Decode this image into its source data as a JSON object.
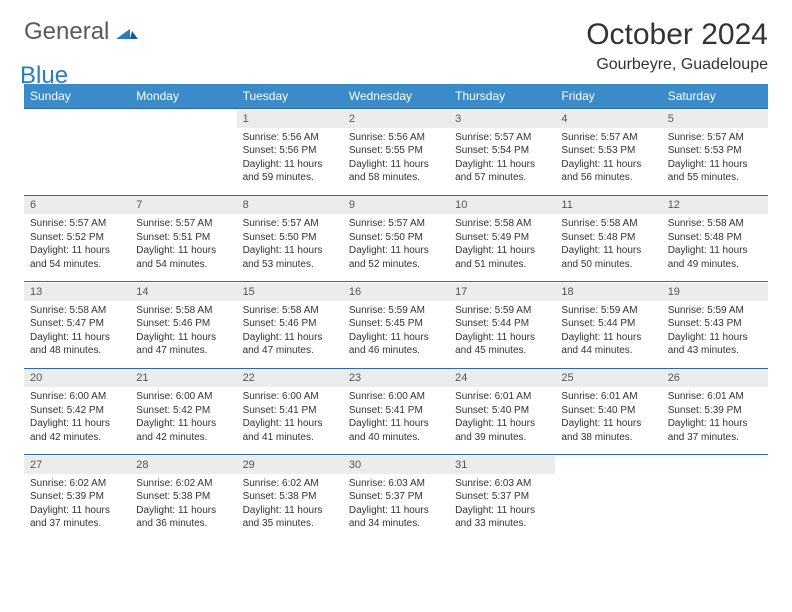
{
  "brand": {
    "word1": "General",
    "word2": "Blue"
  },
  "title": {
    "month": "October 2024",
    "location": "Gourbeyre, Guadeloupe"
  },
  "colors": {
    "header_bg": "#3b8bc9",
    "header_text": "#ffffff",
    "daynum_bg": "#ececec",
    "week_border": "#2d6aa3",
    "logo_gray": "#5a5a5a",
    "logo_blue": "#2b7bbf"
  },
  "day_names": [
    "Sunday",
    "Monday",
    "Tuesday",
    "Wednesday",
    "Thursday",
    "Friday",
    "Saturday"
  ],
  "weeks": [
    [
      null,
      null,
      {
        "n": "1",
        "sr": "5:56 AM",
        "ss": "5:56 PM",
        "dl": "11 hours and 59 minutes."
      },
      {
        "n": "2",
        "sr": "5:56 AM",
        "ss": "5:55 PM",
        "dl": "11 hours and 58 minutes."
      },
      {
        "n": "3",
        "sr": "5:57 AM",
        "ss": "5:54 PM",
        "dl": "11 hours and 57 minutes."
      },
      {
        "n": "4",
        "sr": "5:57 AM",
        "ss": "5:53 PM",
        "dl": "11 hours and 56 minutes."
      },
      {
        "n": "5",
        "sr": "5:57 AM",
        "ss": "5:53 PM",
        "dl": "11 hours and 55 minutes."
      }
    ],
    [
      {
        "n": "6",
        "sr": "5:57 AM",
        "ss": "5:52 PM",
        "dl": "11 hours and 54 minutes."
      },
      {
        "n": "7",
        "sr": "5:57 AM",
        "ss": "5:51 PM",
        "dl": "11 hours and 54 minutes."
      },
      {
        "n": "8",
        "sr": "5:57 AM",
        "ss": "5:50 PM",
        "dl": "11 hours and 53 minutes."
      },
      {
        "n": "9",
        "sr": "5:57 AM",
        "ss": "5:50 PM",
        "dl": "11 hours and 52 minutes."
      },
      {
        "n": "10",
        "sr": "5:58 AM",
        "ss": "5:49 PM",
        "dl": "11 hours and 51 minutes."
      },
      {
        "n": "11",
        "sr": "5:58 AM",
        "ss": "5:48 PM",
        "dl": "11 hours and 50 minutes."
      },
      {
        "n": "12",
        "sr": "5:58 AM",
        "ss": "5:48 PM",
        "dl": "11 hours and 49 minutes."
      }
    ],
    [
      {
        "n": "13",
        "sr": "5:58 AM",
        "ss": "5:47 PM",
        "dl": "11 hours and 48 minutes."
      },
      {
        "n": "14",
        "sr": "5:58 AM",
        "ss": "5:46 PM",
        "dl": "11 hours and 47 minutes."
      },
      {
        "n": "15",
        "sr": "5:58 AM",
        "ss": "5:46 PM",
        "dl": "11 hours and 47 minutes."
      },
      {
        "n": "16",
        "sr": "5:59 AM",
        "ss": "5:45 PM",
        "dl": "11 hours and 46 minutes."
      },
      {
        "n": "17",
        "sr": "5:59 AM",
        "ss": "5:44 PM",
        "dl": "11 hours and 45 minutes."
      },
      {
        "n": "18",
        "sr": "5:59 AM",
        "ss": "5:44 PM",
        "dl": "11 hours and 44 minutes."
      },
      {
        "n": "19",
        "sr": "5:59 AM",
        "ss": "5:43 PM",
        "dl": "11 hours and 43 minutes."
      }
    ],
    [
      {
        "n": "20",
        "sr": "6:00 AM",
        "ss": "5:42 PM",
        "dl": "11 hours and 42 minutes."
      },
      {
        "n": "21",
        "sr": "6:00 AM",
        "ss": "5:42 PM",
        "dl": "11 hours and 42 minutes."
      },
      {
        "n": "22",
        "sr": "6:00 AM",
        "ss": "5:41 PM",
        "dl": "11 hours and 41 minutes."
      },
      {
        "n": "23",
        "sr": "6:00 AM",
        "ss": "5:41 PM",
        "dl": "11 hours and 40 minutes."
      },
      {
        "n": "24",
        "sr": "6:01 AM",
        "ss": "5:40 PM",
        "dl": "11 hours and 39 minutes."
      },
      {
        "n": "25",
        "sr": "6:01 AM",
        "ss": "5:40 PM",
        "dl": "11 hours and 38 minutes."
      },
      {
        "n": "26",
        "sr": "6:01 AM",
        "ss": "5:39 PM",
        "dl": "11 hours and 37 minutes."
      }
    ],
    [
      {
        "n": "27",
        "sr": "6:02 AM",
        "ss": "5:39 PM",
        "dl": "11 hours and 37 minutes."
      },
      {
        "n": "28",
        "sr": "6:02 AM",
        "ss": "5:38 PM",
        "dl": "11 hours and 36 minutes."
      },
      {
        "n": "29",
        "sr": "6:02 AM",
        "ss": "5:38 PM",
        "dl": "11 hours and 35 minutes."
      },
      {
        "n": "30",
        "sr": "6:03 AM",
        "ss": "5:37 PM",
        "dl": "11 hours and 34 minutes."
      },
      {
        "n": "31",
        "sr": "6:03 AM",
        "ss": "5:37 PM",
        "dl": "11 hours and 33 minutes."
      },
      null,
      null
    ]
  ],
  "labels": {
    "sunrise": "Sunrise:",
    "sunset": "Sunset:",
    "daylight": "Daylight:"
  }
}
